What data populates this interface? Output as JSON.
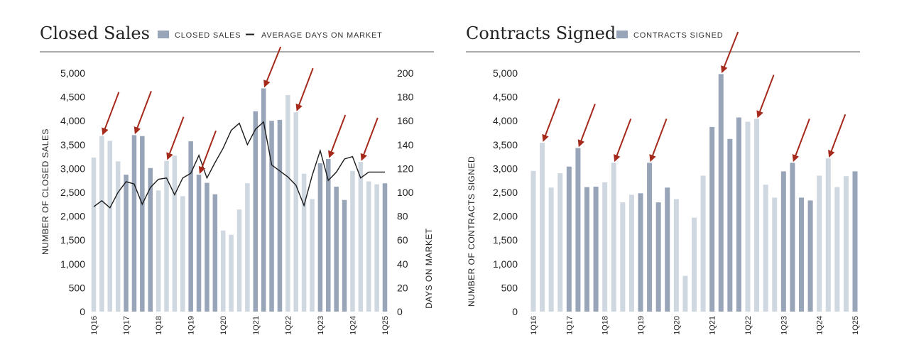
{
  "chart_data": [
    {
      "type": "bar",
      "title": "Closed Sales",
      "legend": [
        "CLOSED SALES",
        "AVERAGE DAYS ON MARKET"
      ],
      "ylabel": "NUMBER OF CLOSED SALES",
      "y2label": "DAYS ON MARKET",
      "ylim": [
        0,
        5000
      ],
      "y2lim": [
        0,
        200
      ],
      "yticks": [
        "0",
        "500",
        "1,000",
        "1,500",
        "2,000",
        "2,500",
        "3,000",
        "3,500",
        "4,000",
        "4,500",
        "5,000"
      ],
      "y2ticks": [
        "0",
        "20",
        "40",
        "60",
        "80",
        "100",
        "120",
        "140",
        "160",
        "180",
        "200"
      ],
      "categories": [
        "1Q16",
        "2Q16",
        "3Q16",
        "4Q16",
        "1Q17",
        "2Q17",
        "3Q17",
        "4Q17",
        "1Q18",
        "2Q18",
        "3Q18",
        "4Q18",
        "1Q19",
        "2Q19",
        "3Q19",
        "4Q19",
        "1Q20",
        "2Q20",
        "3Q20",
        "4Q20",
        "1Q21",
        "2Q21",
        "3Q21",
        "4Q21",
        "1Q22",
        "2Q22",
        "3Q22",
        "4Q22",
        "1Q23",
        "2Q23",
        "3Q23",
        "4Q23",
        "1Q24",
        "2Q24",
        "3Q24",
        "4Q24",
        "1Q25"
      ],
      "x_labels": [
        "1Q16",
        "1Q17",
        "1Q18",
        "1Q19",
        "1Q20",
        "1Q21",
        "1Q22",
        "1Q23",
        "1Q24",
        "1Q25"
      ],
      "x_label_indices": [
        0,
        4,
        8,
        12,
        16,
        20,
        24,
        28,
        32,
        36
      ],
      "series": [
        {
          "name": "CLOSED SALES",
          "values": [
            3230,
            3680,
            3580,
            3150,
            2870,
            3700,
            3680,
            3010,
            2540,
            3160,
            3270,
            2420,
            3570,
            2870,
            2700,
            2460,
            1700,
            1610,
            2140,
            2690,
            4200,
            4680,
            4000,
            4020,
            4540,
            4180,
            2890,
            2360,
            3110,
            3200,
            2620,
            2340,
            2950,
            3140,
            2730,
            2670,
            2690
          ]
        },
        {
          "name": "AVERAGE DAYS ON MARKET",
          "values": [
            88,
            93,
            87,
            100,
            109,
            107,
            90,
            104,
            111,
            112,
            98,
            112,
            116,
            131,
            112,
            125,
            137,
            152,
            158,
            140,
            153,
            159,
            123,
            118,
            113,
            106,
            89,
            114,
            135,
            110,
            117,
            128,
            130,
            112,
            117,
            117,
            117
          ]
        }
      ],
      "highlighted": [
        1,
        5,
        9,
        13,
        21,
        25,
        29,
        33
      ]
    },
    {
      "type": "bar",
      "title": "Contracts Signed",
      "legend": [
        "CONTRACTS SIGNED"
      ],
      "ylabel": "NUMBER OF CONTRACTS SIGNED",
      "ylim": [
        0,
        5000
      ],
      "yticks": [
        "0",
        "500",
        "1,000",
        "1,500",
        "2,000",
        "2,500",
        "3,000",
        "3,500",
        "4,000",
        "4,500",
        "5,000"
      ],
      "categories": [
        "1Q16",
        "2Q16",
        "3Q16",
        "4Q16",
        "1Q17",
        "2Q17",
        "3Q17",
        "4Q17",
        "1Q18",
        "2Q18",
        "3Q18",
        "4Q18",
        "1Q19",
        "2Q19",
        "3Q19",
        "4Q19",
        "1Q20",
        "2Q20",
        "3Q20",
        "4Q20",
        "1Q21",
        "2Q21",
        "3Q21",
        "4Q21",
        "1Q22",
        "2Q22",
        "3Q22",
        "4Q22",
        "1Q23",
        "2Q23",
        "3Q23",
        "4Q23",
        "1Q24",
        "2Q24",
        "3Q24",
        "4Q24",
        "1Q25"
      ],
      "x_labels": [
        "1Q16",
        "1Q17",
        "1Q18",
        "1Q19",
        "1Q20",
        "1Q21",
        "1Q22",
        "1Q23",
        "1Q24",
        "1Q25"
      ],
      "x_label_indices": [
        0,
        4,
        8,
        12,
        16,
        20,
        24,
        28,
        32,
        36
      ],
      "series": [
        {
          "name": "CONTRACTS SIGNED",
          "values": [
            2950,
            3540,
            2600,
            2900,
            3040,
            3430,
            2610,
            2620,
            2710,
            3120,
            2290,
            2450,
            2480,
            3120,
            2290,
            2600,
            2360,
            750,
            1970,
            2850,
            3870,
            4980,
            3620,
            4070,
            3980,
            4040,
            2660,
            2390,
            2940,
            3120,
            2390,
            2330,
            2850,
            3210,
            2610,
            2840,
            2940
          ]
        }
      ],
      "highlighted": [
        1,
        5,
        9,
        13,
        21,
        25,
        29,
        33
      ]
    }
  ],
  "colors": {
    "bar_dark": "#98a4b8",
    "bar_light": "#cfd7e0",
    "line": "#1c1c1c",
    "arrow": "#a52a1c",
    "rule": "#555555"
  }
}
